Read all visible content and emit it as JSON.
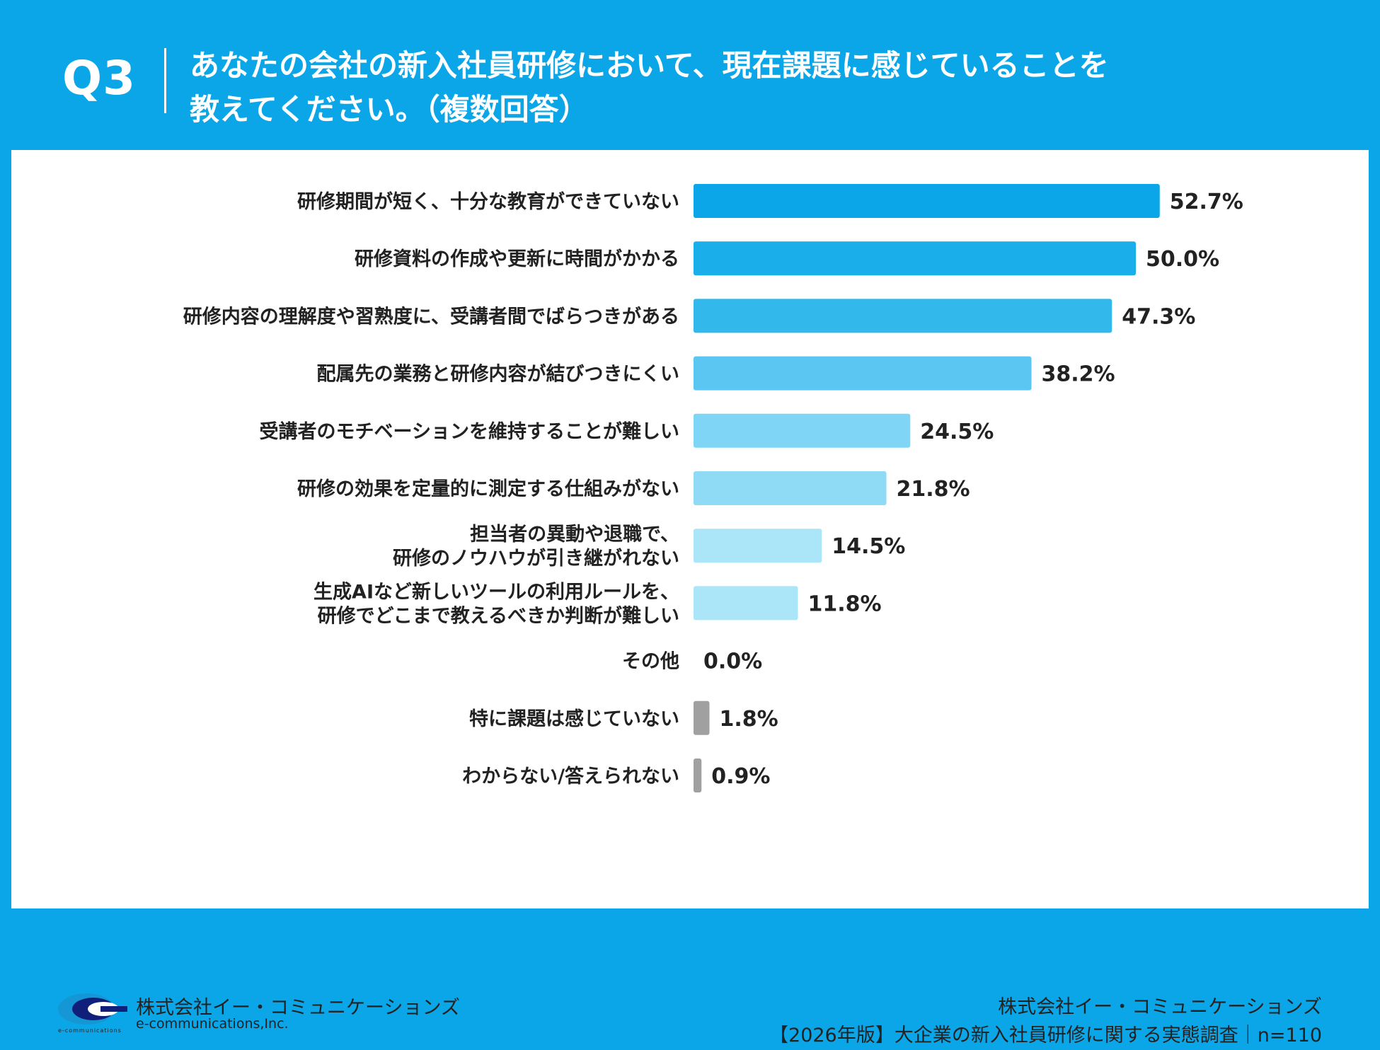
{
  "header": {
    "question_label": "Q3",
    "question_line1": "あなたの会社の新入社員研修において、現在課題に感じていることを",
    "question_line2": "教えてください。（複数回答）"
  },
  "chart_data": {
    "type": "bar",
    "orientation": "horizontal",
    "title": "あなたの会社の新入社員研修において、現在課題に感じていることを教えてください。（複数回答）",
    "categories": [
      [
        "研修期間が短く、十分な教育ができていない"
      ],
      [
        "研修資料の作成や更新に時間がかかる"
      ],
      [
        "研修内容の理解度や習熟度に、受講者間でばらつきがある"
      ],
      [
        "配属先の業務と研修内容が結びつきにくい"
      ],
      [
        "受講者のモチベーションを維持することが難しい"
      ],
      [
        "研修の効果を定量的に測定する仕組みがない"
      ],
      [
        "担当者の異動や退職で、",
        "研修のノウハウが引き継がれない"
      ],
      [
        "生成AIなど新しいツールの利用ルールを、",
        "研修でどこまで教えるべきか判断が難しい"
      ],
      [
        "その他"
      ],
      [
        "特に課題は感じていない"
      ],
      [
        "わからない/答えられない"
      ]
    ],
    "values": [
      52.7,
      50.0,
      47.3,
      38.2,
      24.5,
      21.8,
      14.5,
      11.8,
      0.0,
      1.8,
      0.9
    ],
    "value_labels": [
      "52.7%",
      "50.0%",
      "47.3%",
      "38.2%",
      "24.5%",
      "21.8%",
      "14.5%",
      "11.8%",
      "0.0%",
      "1.8%",
      "0.9%"
    ],
    "colors": [
      "#0aa6e8",
      "#1aaeea",
      "#33b8ec",
      "#5ac6f1",
      "#7fd5f5",
      "#8fdbf6",
      "#aae5f8",
      "#aae5f8",
      "#a0a0a0",
      "#a0a0a0",
      "#a0a0a0"
    ],
    "unit": "%",
    "xlim": [
      0,
      100
    ],
    "grid": false
  },
  "footer": {
    "company": "株式会社イー・コミュニケーションズ",
    "survey": "【2026年版】大企業の新入社員研修に関する実態調査｜n=110",
    "logo_name": "株式会社イー・コミュニケーションズ",
    "logo_en": "e-communications,Inc.",
    "logo_small": "e-communications"
  },
  "colors": {
    "brand": "#0aa6e8"
  }
}
